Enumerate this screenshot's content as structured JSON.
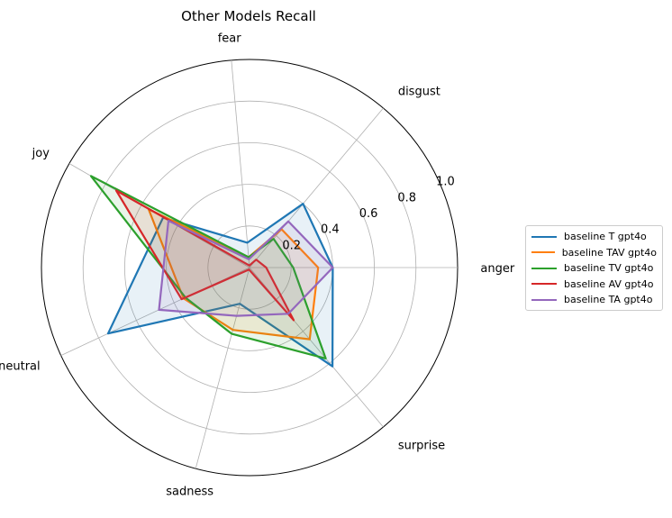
{
  "chart_data": {
    "type": "radar",
    "title": "Other Models Recall",
    "categories": [
      "anger",
      "disgust",
      "fear",
      "joy",
      "neutral",
      "sadness",
      "surprise"
    ],
    "angles_deg": [
      0,
      50,
      95,
      150,
      205,
      255,
      310
    ],
    "rlim": [
      0,
      1.0
    ],
    "rticks": [
      0.2,
      0.4,
      0.6,
      0.8,
      1.0
    ],
    "rtick_labels": [
      "0.2",
      "0.4",
      "0.6",
      "0.8",
      "1.0"
    ],
    "grid": true,
    "legend_position": "right",
    "series": [
      {
        "name": "baseline T gpt4o",
        "color": "#1f77b4",
        "values": [
          0.4,
          0.4,
          0.12,
          0.48,
          0.75,
          0.18,
          0.62
        ]
      },
      {
        "name": "baseline TAV gpt4o",
        "color": "#ff7f0e",
        "values": [
          0.33,
          0.24,
          0.05,
          0.56,
          0.35,
          0.31,
          0.45
        ]
      },
      {
        "name": "baseline TV gpt4o",
        "color": "#2ca02c",
        "values": [
          0.21,
          0.18,
          0.05,
          0.88,
          0.34,
          0.33,
          0.57
        ]
      },
      {
        "name": "baseline AV gpt4o",
        "color": "#d62728",
        "values": [
          0.08,
          0.05,
          0.01,
          0.74,
          0.36,
          0.01,
          0.33
        ]
      },
      {
        "name": "baseline TA gpt4o",
        "color": "#9467bd",
        "values": [
          0.4,
          0.29,
          0.04,
          0.45,
          0.48,
          0.24,
          0.29
        ]
      }
    ]
  }
}
